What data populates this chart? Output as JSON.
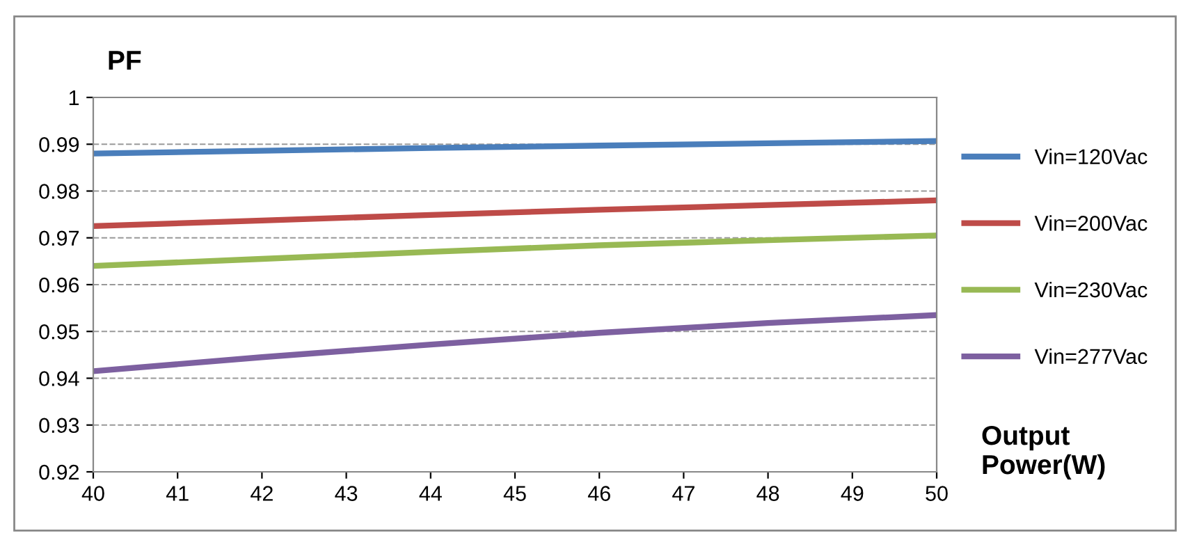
{
  "chart_data": {
    "type": "line",
    "ylabel": "PF",
    "xlabel": "Output Power(W)",
    "x": [
      40,
      42,
      44,
      46,
      48,
      50
    ],
    "series": [
      {
        "name": "Vin=120Vac",
        "color": "#4a7ebb",
        "values": [
          0.988,
          0.9886,
          0.9892,
          0.9897,
          0.9902,
          0.9907
        ]
      },
      {
        "name": "Vin=200Vac",
        "color": "#be4b48",
        "values": [
          0.9725,
          0.9737,
          0.9749,
          0.976,
          0.977,
          0.978
        ]
      },
      {
        "name": "Vin=230Vac",
        "color": "#98b954",
        "values": [
          0.964,
          0.9655,
          0.967,
          0.9684,
          0.9695,
          0.9705
        ]
      },
      {
        "name": "Vin=277Vac",
        "color": "#7d60a0",
        "values": [
          0.9415,
          0.9445,
          0.9472,
          0.9497,
          0.9518,
          0.9535
        ]
      }
    ],
    "xlim": [
      40,
      50
    ],
    "xticks": [
      40,
      41,
      42,
      43,
      44,
      45,
      46,
      47,
      48,
      49,
      50
    ],
    "ylim": [
      0.92,
      1
    ],
    "yticks": [
      0.92,
      0.93,
      0.94,
      0.95,
      0.96,
      0.97,
      0.98,
      0.99,
      1
    ],
    "grid": "y",
    "legend": "right",
    "marker": "none",
    "line_style": "solid"
  }
}
